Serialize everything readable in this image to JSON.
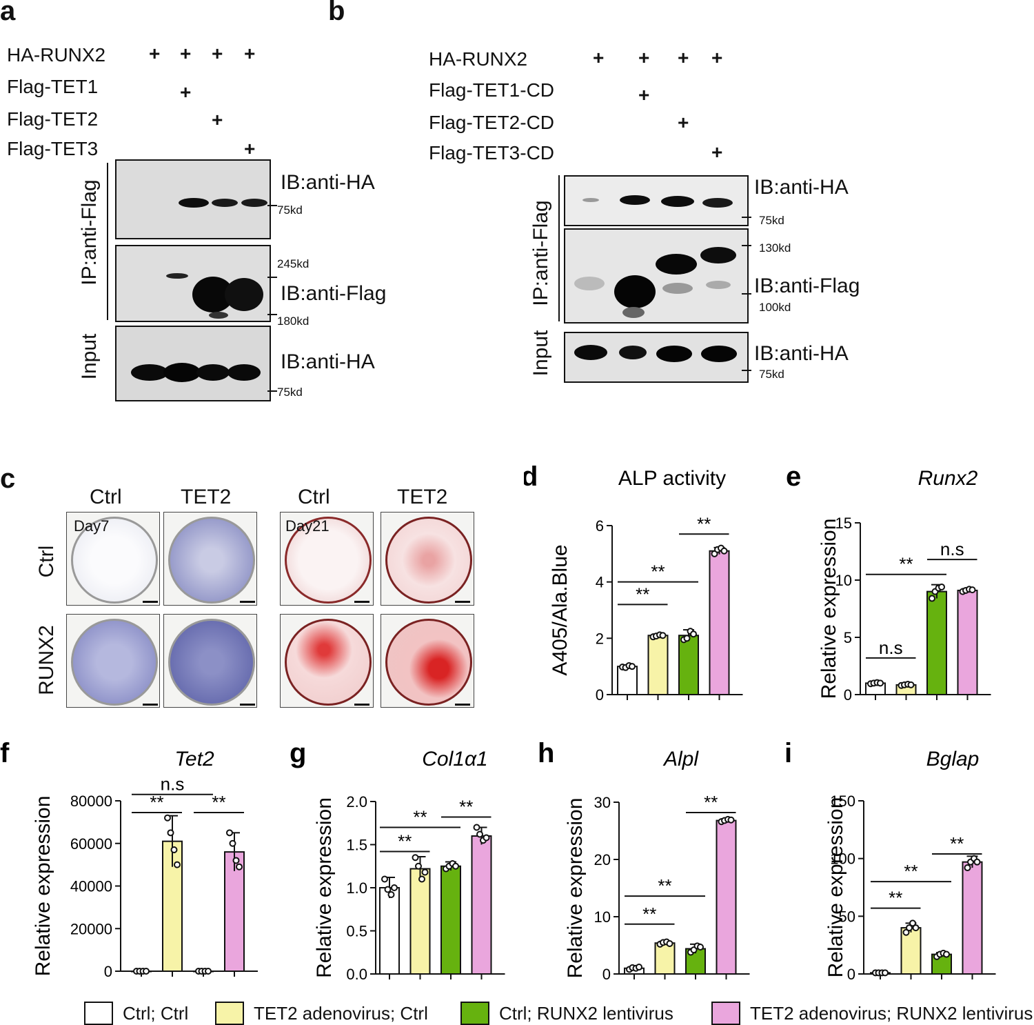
{
  "panel_a": {
    "label": "a",
    "conditions": [
      "HA-RUNX2",
      "Flag-TET1",
      "Flag-TET2",
      "Flag-TET3"
    ],
    "plus": "+",
    "ip_label": "IP:anti-Flag",
    "input_label": "Input",
    "ib1": "IB:anti-HA",
    "ib2": "IB:anti-Flag",
    "ib3": "IB:anti-HA",
    "mw": [
      "75kd",
      "245kd",
      "180kd",
      "75kd"
    ]
  },
  "panel_b": {
    "label": "b",
    "conditions": [
      "HA-RUNX2",
      "Flag-TET1-CD",
      "Flag-TET2-CD",
      "Flag-TET3-CD"
    ],
    "plus": "+",
    "ip_label": "IP:anti-Flag",
    "input_label": "Input",
    "ib1": "IB:anti-HA",
    "ib2": "IB:anti-Flag",
    "ib3": "IB:anti-HA",
    "mw": [
      "75kd",
      "130kd",
      "100kd",
      "75kd"
    ]
  },
  "panel_c": {
    "label": "c",
    "col_headers": [
      "Ctrl",
      "TET2",
      "Ctrl",
      "TET2"
    ],
    "row_labels": [
      "Ctrl",
      "RUNX2"
    ],
    "day_labels": [
      "Day7",
      "Day21"
    ]
  },
  "legend": [
    {
      "label": "Ctrl; Ctrl",
      "color": "#ffffff"
    },
    {
      "label": "TET2 adenovirus; Ctrl",
      "color": "#f7f3a8"
    },
    {
      "label": "Ctrl; RUNX2 lentivirus",
      "color": "#66b20f"
    },
    {
      "label": "TET2 adenovirus; RUNX2 lentivirus",
      "color": "#eaa6dd"
    }
  ],
  "chart_data": [
    {
      "panel": "d",
      "type": "bar",
      "title": "ALP activity",
      "title_italic": false,
      "ylabel": "A405/Ala.Blue",
      "ylim": [
        0,
        6
      ],
      "yticks": [
        "0",
        "2",
        "4",
        "6"
      ],
      "values": [
        1.0,
        2.1,
        2.1,
        5.1
      ],
      "errors": [
        0.05,
        0.05,
        0.2,
        0.12
      ],
      "points": [
        [
          0.98,
          0.96,
          1.03,
          1.0
        ],
        [
          2.05,
          2.08,
          2.12,
          2.1
        ],
        [
          1.95,
          2.0,
          2.25,
          2.15
        ],
        [
          5.0,
          5.15,
          5.2,
          5.1
        ]
      ],
      "sig": [
        {
          "from": 0,
          "to": 1,
          "level": 3.2,
          "text": "**"
        },
        {
          "from": 0,
          "to": 2,
          "level": 4.0,
          "text": "**"
        },
        {
          "from": 2,
          "to": 3,
          "level": 5.7,
          "text": "**"
        }
      ]
    },
    {
      "panel": "e",
      "type": "bar",
      "title": "Runx2",
      "title_italic": true,
      "ylabel": "Relative expression",
      "ylim": [
        0,
        15
      ],
      "yticks": [
        "0",
        "5",
        "10",
        "15"
      ],
      "values": [
        1.0,
        0.85,
        9.0,
        9.1
      ],
      "errors": [
        0.1,
        0.08,
        0.6,
        0.15
      ],
      "points": [
        [
          0.95,
          1.0,
          1.05,
          1.0
        ],
        [
          0.8,
          0.85,
          0.9,
          0.85
        ],
        [
          8.4,
          9.0,
          9.3,
          9.4
        ],
        [
          9.0,
          9.1,
          9.2,
          9.15
        ]
      ],
      "sig": [
        {
          "from": 0,
          "to": 1,
          "level": 3.2,
          "text": "n.s"
        },
        {
          "from": 0,
          "to": 2,
          "level": 10.5,
          "text": "**"
        },
        {
          "from": 2,
          "to": 3,
          "level": 11.8,
          "text": "n.s"
        }
      ]
    },
    {
      "panel": "f",
      "type": "bar",
      "title": "Tet2",
      "title_italic": true,
      "ylabel": "Relative expression",
      "ylim": [
        0,
        80000
      ],
      "yticks": [
        "0",
        "20000",
        "40000",
        "60000",
        "80000"
      ],
      "values": [
        1,
        61000,
        1,
        56000
      ],
      "errors": [
        0,
        12000,
        0,
        9000
      ],
      "points": [
        [
          1,
          1,
          1,
          1
        ],
        [
          72000,
          65000,
          57000,
          50000
        ],
        [
          1,
          1,
          1,
          1
        ],
        [
          65000,
          60000,
          52000,
          49000
        ]
      ],
      "sig": [
        {
          "from": 0,
          "to": 1,
          "level": 74500,
          "text": "**"
        },
        {
          "from": 0,
          "to": 2,
          "level": 83000,
          "text": "n.s"
        },
        {
          "from": 2,
          "to": 3,
          "level": 74500,
          "text": "**"
        }
      ]
    },
    {
      "panel": "g",
      "type": "bar",
      "title": "Col1α1",
      "title_italic": true,
      "ylabel": "Relative expression",
      "ylim": [
        0,
        2.0
      ],
      "yticks": [
        "0.0",
        "0.5",
        "1.0",
        "1.5",
        "2.0"
      ],
      "values": [
        1.0,
        1.22,
        1.25,
        1.6
      ],
      "errors": [
        0.12,
        0.14,
        0.05,
        0.1
      ],
      "points": [
        [
          1.1,
          0.98,
          0.92,
          1.0
        ],
        [
          1.35,
          1.25,
          1.1,
          1.18
        ],
        [
          1.22,
          1.25,
          1.28,
          1.25
        ],
        [
          1.7,
          1.62,
          1.55,
          1.58
        ]
      ],
      "sig": [
        {
          "from": 0,
          "to": 1,
          "level": 1.42,
          "text": "**"
        },
        {
          "from": 0,
          "to": 2,
          "level": 1.7,
          "text": "**"
        },
        {
          "from": 2,
          "to": 3,
          "level": 1.82,
          "text": "**"
        }
      ]
    },
    {
      "panel": "h",
      "type": "bar",
      "title": "Alpl",
      "title_italic": true,
      "ylabel": "Relative expression",
      "ylim": [
        0,
        30
      ],
      "yticks": [
        "0",
        "10",
        "20",
        "30"
      ],
      "values": [
        1.0,
        5.4,
        4.4,
        26.8
      ],
      "errors": [
        0.2,
        0.3,
        0.8,
        0.3
      ],
      "points": [
        [
          0.8,
          1.1,
          1.0,
          1.2
        ],
        [
          5.2,
          5.5,
          5.6,
          5.3
        ],
        [
          3.8,
          4.2,
          4.9,
          4.7
        ],
        [
          26.6,
          26.8,
          27.0,
          26.9
        ]
      ],
      "sig": [
        {
          "from": 0,
          "to": 1,
          "level": 8.7,
          "text": "**"
        },
        {
          "from": 0,
          "to": 2,
          "level": 13.6,
          "text": "**"
        },
        {
          "from": 2,
          "to": 3,
          "level": 28.2,
          "text": "**"
        }
      ]
    },
    {
      "panel": "i",
      "type": "bar",
      "title": "Bglap",
      "title_italic": true,
      "ylabel": "Relative expression",
      "ylim": [
        0,
        150
      ],
      "yticks": [
        "0",
        "50",
        "100",
        "150"
      ],
      "values": [
        1,
        40,
        17,
        97
      ],
      "errors": [
        0.5,
        4,
        1.5,
        5
      ],
      "points": [
        [
          1,
          1,
          1,
          1
        ],
        [
          36,
          40,
          44,
          40
        ],
        [
          15,
          17,
          18,
          17
        ],
        [
          92,
          97,
          100,
          97
        ]
      ],
      "sig": [
        {
          "from": 0,
          "to": 1,
          "level": 57,
          "text": "**"
        },
        {
          "from": 0,
          "to": 2,
          "level": 80,
          "text": "**"
        },
        {
          "from": 2,
          "to": 3,
          "level": 104,
          "text": "**"
        }
      ]
    }
  ]
}
